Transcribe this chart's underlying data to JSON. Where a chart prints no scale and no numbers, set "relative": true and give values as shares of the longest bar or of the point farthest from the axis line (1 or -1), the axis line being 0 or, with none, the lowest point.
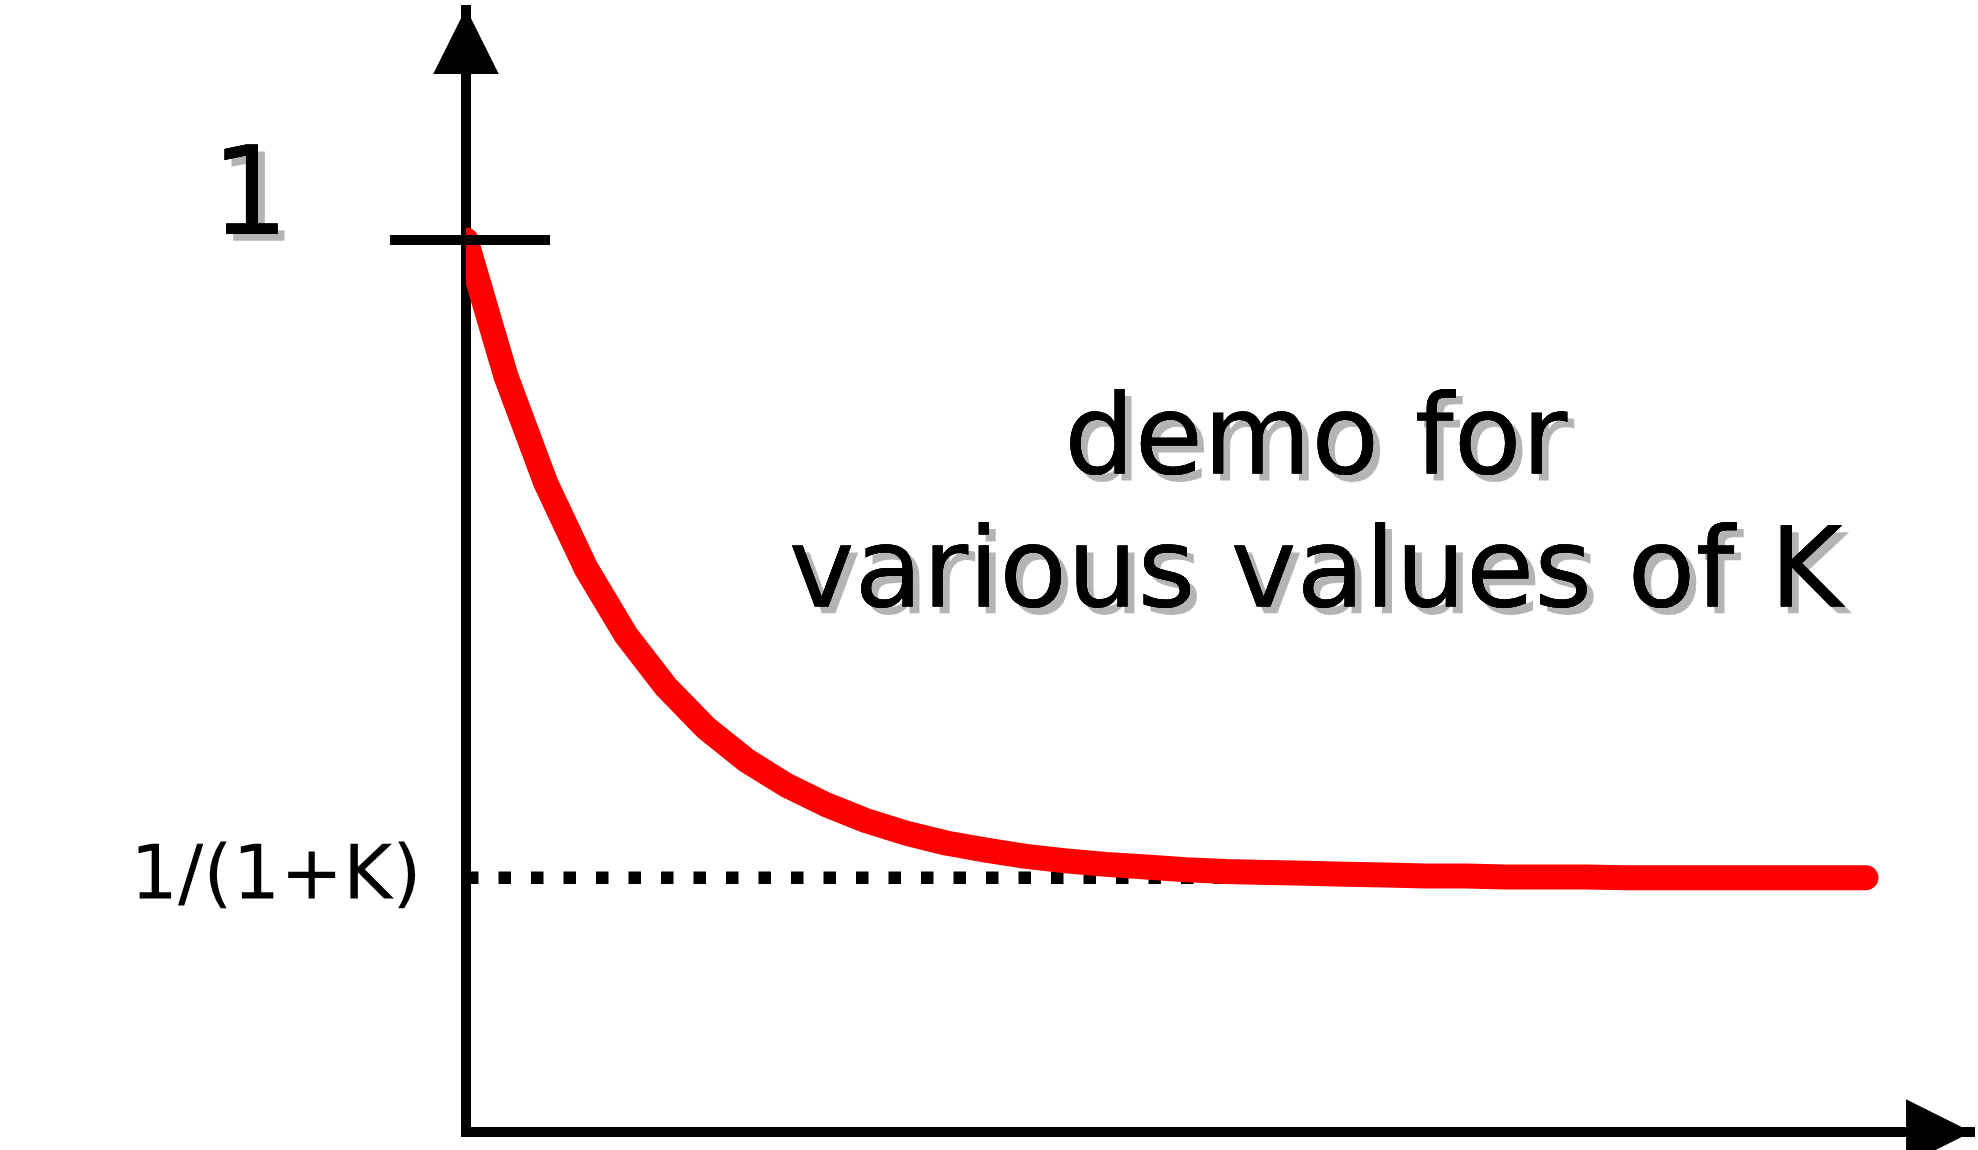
{
  "chart_data": {
    "type": "line",
    "relative": true,
    "categories": [
      null,
      null,
      null,
      null,
      null,
      null,
      null,
      null,
      null,
      null,
      null,
      null,
      null,
      null,
      null,
      null,
      null,
      null,
      null,
      null,
      null,
      null,
      null,
      null,
      null,
      null,
      null,
      null,
      null,
      null,
      null,
      null,
      null,
      null,
      null,
      null
    ],
    "series": [
      {
        "color": "#ff0000",
        "values": [
          1.0,
          0.847,
          0.727,
          0.632,
          0.557,
          0.499,
          0.453,
          0.417,
          0.389,
          0.367,
          0.349,
          0.335,
          0.324,
          0.316,
          0.309,
          0.304,
          0.3,
          0.297,
          0.294,
          0.292,
          0.291,
          0.29,
          0.289,
          0.288,
          0.287,
          0.287,
          0.286,
          0.286,
          0.286,
          0.285,
          0.285,
          0.285,
          0.285,
          0.285,
          0.285,
          0.285
        ]
      }
    ],
    "ref_lines": [
      {
        "axis": "y",
        "value": 0.285,
        "label": "1/(1+K)",
        "color": "#000000",
        "line_style": "dotted"
      }
    ],
    "annotations": [
      "demo for\nvarious values of K",
      "1"
    ],
    "grid": false,
    "marker": "none",
    "line_style": "solid"
  }
}
